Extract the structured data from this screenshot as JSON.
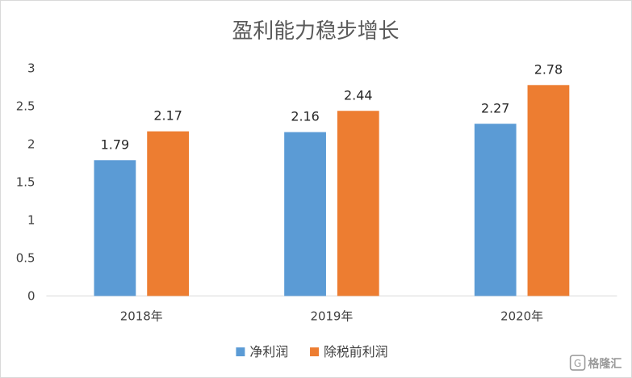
{
  "chart_data": {
    "type": "bar",
    "title": "盈利能力稳步增长",
    "categories": [
      "2018年",
      "2019年",
      "2020年"
    ],
    "series": [
      {
        "name": "净利润",
        "color": "#5b9bd5",
        "values": [
          1.79,
          2.16,
          2.27
        ]
      },
      {
        "name": "除税前利润",
        "color": "#ed7d31",
        "values": [
          2.17,
          2.44,
          2.78
        ]
      }
    ],
    "ylim": [
      0,
      3
    ],
    "yticks": [
      "0",
      "0.5",
      "1",
      "1.5",
      "2",
      "2.5",
      "3"
    ],
    "ytick_values": [
      0,
      0.5,
      1,
      1.5,
      2,
      2.5,
      3
    ],
    "xlabel": "",
    "ylabel": "",
    "grid": false,
    "legend": "bottom-center"
  },
  "watermark": {
    "text": "格隆汇",
    "icon": "glh-logo-icon"
  }
}
